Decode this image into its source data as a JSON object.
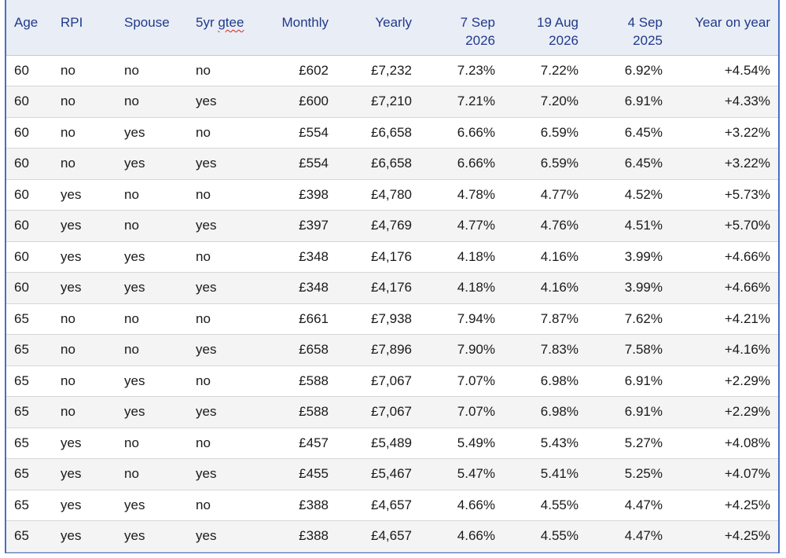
{
  "table": {
    "headers": {
      "age": "Age",
      "rpi": "RPI",
      "spouse": "Spouse",
      "gtee_prefix": "5yr ",
      "gtee_word": "gtee",
      "monthly": "Monthly",
      "yearly": "Yearly",
      "date1_line1": "7 Sep",
      "date1_line2": "2026",
      "date2_line1": "19 Aug",
      "date2_line2": "2026",
      "date3_line1": "4 Sep",
      "date3_line2": "2025",
      "yoy": "Year on year"
    },
    "rows": [
      [
        "60",
        "no",
        "no",
        "no",
        "£602",
        "£7,232",
        "7.23%",
        "7.22%",
        "6.92%",
        "+4.54%"
      ],
      [
        "60",
        "no",
        "no",
        "yes",
        "£600",
        "£7,210",
        "7.21%",
        "7.20%",
        "6.91%",
        "+4.33%"
      ],
      [
        "60",
        "no",
        "yes",
        "no",
        "£554",
        "£6,658",
        "6.66%",
        "6.59%",
        "6.45%",
        "+3.22%"
      ],
      [
        "60",
        "no",
        "yes",
        "yes",
        "£554",
        "£6,658",
        "6.66%",
        "6.59%",
        "6.45%",
        "+3.22%"
      ],
      [
        "60",
        "yes",
        "no",
        "no",
        "£398",
        "£4,780",
        "4.78%",
        "4.77%",
        "4.52%",
        "+5.73%"
      ],
      [
        "60",
        "yes",
        "no",
        "yes",
        "£397",
        "£4,769",
        "4.77%",
        "4.76%",
        "4.51%",
        "+5.70%"
      ],
      [
        "60",
        "yes",
        "yes",
        "no",
        "£348",
        "£4,176",
        "4.18%",
        "4.16%",
        "3.99%",
        "+4.66%"
      ],
      [
        "60",
        "yes",
        "yes",
        "yes",
        "£348",
        "£4,176",
        "4.18%",
        "4.16%",
        "3.99%",
        "+4.66%"
      ],
      [
        "65",
        "no",
        "no",
        "no",
        "£661",
        "£7,938",
        "7.94%",
        "7.87%",
        "7.62%",
        "+4.21%"
      ],
      [
        "65",
        "no",
        "no",
        "yes",
        "£658",
        "£7,896",
        "7.90%",
        "7.83%",
        "7.58%",
        "+4.16%"
      ],
      [
        "65",
        "no",
        "yes",
        "no",
        "£588",
        "£7,067",
        "7.07%",
        "6.98%",
        "6.91%",
        "+2.29%"
      ],
      [
        "65",
        "no",
        "yes",
        "yes",
        "£588",
        "£7,067",
        "7.07%",
        "6.98%",
        "6.91%",
        "+2.29%"
      ],
      [
        "65",
        "yes",
        "no",
        "no",
        "£457",
        "£5,489",
        "5.49%",
        "5.43%",
        "5.27%",
        "+4.08%"
      ],
      [
        "65",
        "yes",
        "no",
        "yes",
        "£455",
        "£5,467",
        "5.47%",
        "5.41%",
        "5.25%",
        "+4.07%"
      ],
      [
        "65",
        "yes",
        "yes",
        "no",
        "£388",
        "£4,657",
        "4.66%",
        "4.55%",
        "4.47%",
        "+4.25%"
      ],
      [
        "65",
        "yes",
        "yes",
        "yes",
        "£388",
        "£4,657",
        "4.66%",
        "4.55%",
        "4.47%",
        "+4.25%"
      ]
    ]
  }
}
